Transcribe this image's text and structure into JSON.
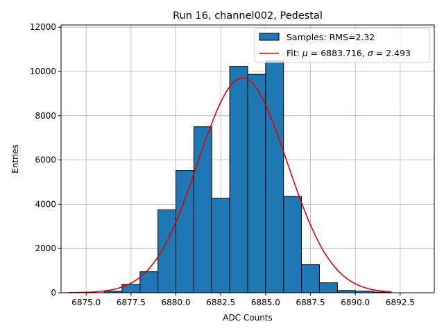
{
  "chart_data": {
    "type": "bar",
    "title": "Run 16, channel002, Pedestal",
    "xlabel": "ADC Counts",
    "ylabel": "Entries",
    "xlim": [
      6873.6,
      6894.4
    ],
    "ylim": [
      0,
      12100
    ],
    "x_ticks": [
      6875.0,
      6877.5,
      6880.0,
      6882.5,
      6885.0,
      6887.5,
      6890.0,
      6892.5
    ],
    "x_tick_labels": [
      "6875.0",
      "6877.5",
      "6880.0",
      "6882.5",
      "6885.0",
      "6887.5",
      "6890.0",
      "6892.5"
    ],
    "y_ticks": [
      0,
      2000,
      4000,
      6000,
      8000,
      10000,
      12000
    ],
    "y_tick_labels": [
      "0",
      "2000",
      "4000",
      "6000",
      "8000",
      "10000",
      "12000"
    ],
    "grid": true,
    "legend_position": "top-right",
    "bin_width": 1,
    "bins": [
      {
        "left": 6876,
        "count": 70
      },
      {
        "left": 6877,
        "count": 380
      },
      {
        "left": 6878,
        "count": 950
      },
      {
        "left": 6879,
        "count": 3750
      },
      {
        "left": 6880,
        "count": 5530
      },
      {
        "left": 6881,
        "count": 7500
      },
      {
        "left": 6882,
        "count": 4270
      },
      {
        "left": 6883,
        "count": 10230
      },
      {
        "left": 6884,
        "count": 9870
      },
      {
        "left": 6885,
        "count": 10480
      },
      {
        "left": 6886,
        "count": 4350
      },
      {
        "left": 6887,
        "count": 1270
      },
      {
        "left": 6888,
        "count": 450
      },
      {
        "left": 6889,
        "count": 100
      },
      {
        "left": 6890,
        "count": 80
      },
      {
        "left": 6891,
        "count": 30
      }
    ],
    "series": [
      {
        "name": "Samples: RMS=2.32",
        "type": "histogram",
        "color": "#1f77b4"
      },
      {
        "name": "Fit: μ = 6883.716, σ = 2.493",
        "type": "line",
        "color": "#e00000",
        "mu": 6883.716,
        "sigma": 2.493,
        "amplitude": 9700,
        "x_range": [
          6874.0,
          6892.0
        ]
      }
    ],
    "legend": {
      "samples_label": "Samples: RMS=2.32",
      "fit_prefix": "Fit: ",
      "fit_mu_symbol": "μ",
      "fit_mu_value": " = 6883.716, ",
      "fit_sigma_symbol": "σ",
      "fit_sigma_value": " = 2.493"
    }
  }
}
